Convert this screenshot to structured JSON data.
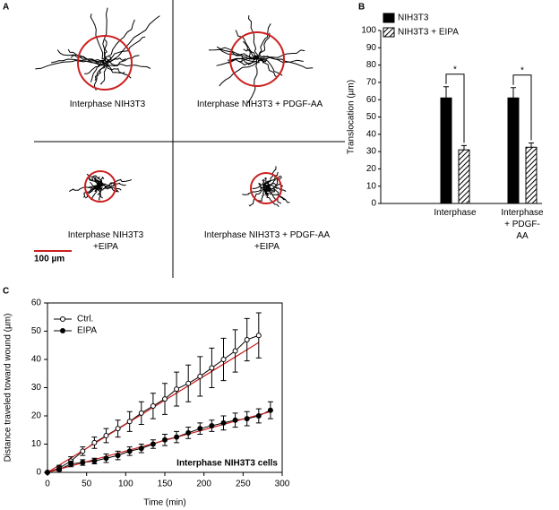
{
  "panel_a": {
    "letter": "A",
    "scale_bar": "100 µm",
    "scale_color": "#cc1f1f",
    "labels": [
      "Interphase NIH3T3",
      "Interphase NIH3T3 + PDGF-AA",
      "Interphase NIH3T3\n+EIPA",
      "Interphase NIH3T3 + PDGF-AA\n+EIPA"
    ]
  },
  "chart_data": [
    {
      "type": "bar",
      "panel_label": "B",
      "ylabel": "Translocation (µm)",
      "categories": [
        "Interphase",
        "Interphase\n+ PDGF-AA"
      ],
      "series": [
        {
          "name": "NIH3T3",
          "color": "#000000",
          "fill": "solid",
          "values": [
            61,
            61
          ],
          "errors": [
            6.5,
            6
          ]
        },
        {
          "name": "NIH3T3 + EIPA",
          "color": "#000000",
          "fill": "hatch",
          "values": [
            31,
            32.5
          ],
          "errors": [
            2.5,
            2.5
          ]
        }
      ],
      "significance": [
        "*",
        "*"
      ],
      "ylim": [
        0,
        100
      ],
      "yticks": [
        0,
        10,
        20,
        30,
        40,
        50,
        60,
        70,
        80,
        90,
        100
      ],
      "legend": "top-left"
    },
    {
      "type": "line",
      "panel_label": "C",
      "xlabel": "Time (min)",
      "ylabel": "Distance traveled toward wound (µm)",
      "annotation": "Interphase NIH3T3 cells",
      "x": [
        0,
        15,
        30,
        45,
        60,
        75,
        90,
        105,
        120,
        135,
        150,
        165,
        180,
        195,
        210,
        225,
        240,
        255,
        270,
        285
      ],
      "series": [
        {
          "name": "Ctrl.",
          "color": "#000000",
          "marker": "open",
          "values": [
            0,
            1.5,
            4,
            7.5,
            10.5,
            13,
            15.5,
            18,
            21,
            23.5,
            26,
            29.5,
            31.5,
            34,
            37,
            40,
            43,
            47,
            48.5,
            null
          ],
          "errors": [
            0,
            1,
            1.5,
            1.5,
            2,
            2.5,
            3,
            3.5,
            4,
            4.5,
            5.5,
            6,
            6.5,
            7,
            7,
            7.5,
            7.5,
            7.5,
            8,
            null
          ]
        },
        {
          "name": "EIPA",
          "color": "#000000",
          "marker": "filled",
          "values": [
            0,
            1,
            3,
            3.5,
            4,
            5,
            6,
            7.5,
            8.5,
            10,
            11.5,
            12.5,
            14,
            15.5,
            16.5,
            17.5,
            18.5,
            19,
            20,
            22
          ],
          "errors": [
            0,
            1,
            1,
            1,
            1,
            1.5,
            1.5,
            1.5,
            1.5,
            1.5,
            2,
            2,
            2,
            2,
            2,
            2.5,
            2.5,
            2.5,
            2.5,
            3
          ]
        }
      ],
      "fit_lines": [
        {
          "color": "#cc1f1f",
          "x": [
            0,
            270
          ],
          "y": [
            0,
            46
          ]
        },
        {
          "color": "#cc1f1f",
          "x": [
            0,
            285
          ],
          "y": [
            0,
            21.5
          ]
        }
      ],
      "xlim": [
        0,
        300
      ],
      "xticks": [
        0,
        50,
        100,
        150,
        200,
        250,
        300
      ],
      "ylim": [
        0,
        60
      ],
      "yticks": [
        0,
        10,
        20,
        30,
        40,
        50,
        60
      ],
      "legend": "top-left"
    }
  ]
}
